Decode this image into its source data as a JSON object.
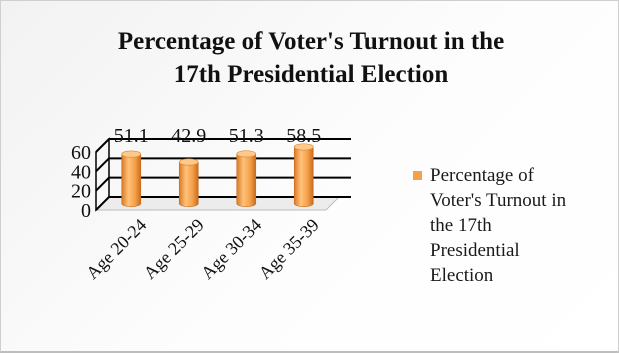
{
  "chart_data": {
    "type": "bar",
    "title": [
      "Percentage of Voter's Turnout in the",
      "17th Presidential Election"
    ],
    "categories": [
      "Age 20-24",
      "Age 25-29",
      "Age 30-34",
      "Age 35-39"
    ],
    "series": [
      {
        "name": [
          "Percentage of",
          "Voter's Turnout in",
          "the 17th",
          "Presidential",
          "Election"
        ],
        "values": [
          51.1,
          42.9,
          51.3,
          58.5
        ],
        "value_labels": [
          "51.1",
          "42.9",
          "51.3",
          "58.5"
        ],
        "color": "#f5a04a"
      }
    ],
    "yticks": [
      "0",
      "20",
      "40",
      "60"
    ],
    "ylim": [
      0,
      60
    ],
    "grid": true,
    "legend": "right",
    "style": "3d-cylinder"
  }
}
